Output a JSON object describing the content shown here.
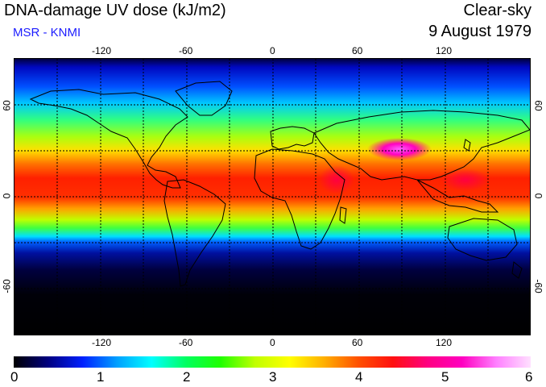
{
  "header": {
    "title": "DNA-damage UV dose (kJ/m2)",
    "subtitle": "MSR - KNMI",
    "sky_condition": "Clear-sky",
    "date": "9 August 1979"
  },
  "map": {
    "lon_ticks_top": [
      "-120",
      "-60",
      "0",
      "60",
      "120"
    ],
    "lon_ticks_bottom": [
      "-120",
      "-60",
      "0",
      "60",
      "120"
    ],
    "lat_ticks_left": [
      "60",
      "0",
      "-60"
    ],
    "lat_ticks_right": [
      "60",
      "0",
      "-60"
    ],
    "grid_lon_step_deg": 30,
    "grid_lat_step_deg": 30
  },
  "colorbar": {
    "min": 0,
    "max": 6,
    "labels": [
      "0",
      "1",
      "2",
      "3",
      "4",
      "5",
      "6"
    ],
    "stops": [
      "#000000",
      "#000080",
      "#0020ff",
      "#00a0ff",
      "#00ffff",
      "#00ff60",
      "#20ff00",
      "#c0ff00",
      "#ffff00",
      "#ffb000",
      "#ff5000",
      "#ff1010",
      "#ff0080",
      "#ff00c0",
      "#ff80ff",
      "#ffe0ff"
    ]
  }
}
